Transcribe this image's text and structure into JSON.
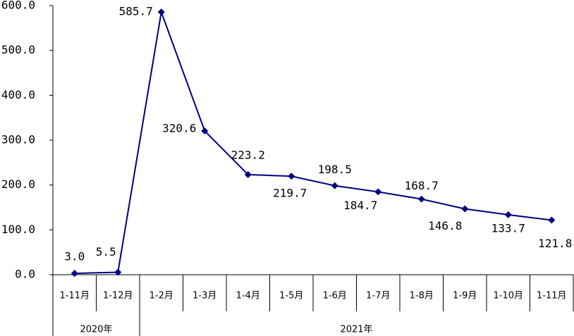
{
  "chart_data": {
    "type": "line",
    "categories": [
      "1-11月",
      "1-12月",
      "1-2月",
      "1-3月",
      "1-4月",
      "1-5月",
      "1-6月",
      "1-7月",
      "1-8月",
      "1-9月",
      "1-10月",
      "1-11月"
    ],
    "groups": [
      "2020年",
      "2021年"
    ],
    "series": [
      {
        "color": "#000080",
        "values": [
          3.0,
          5.5,
          585.7,
          320.6,
          223.2,
          219.7,
          198.5,
          184.7,
          168.7,
          146.8,
          133.7,
          121.8
        ],
        "value_labels": [
          "3.0",
          "5.5",
          "585.7",
          "320.6",
          "223.2",
          "219.7",
          "198.5",
          "184.7",
          "168.7",
          "146.8",
          "133.7",
          "121.8"
        ]
      }
    ],
    "ylim": [
      0,
      600
    ],
    "yticks": [
      {
        "value": 0,
        "label": "0.0"
      },
      {
        "value": 100,
        "label": "100.0"
      },
      {
        "value": 200,
        "label": "200.0"
      },
      {
        "value": 300,
        "label": "300.0"
      },
      {
        "value": 400,
        "label": "400.0"
      },
      {
        "value": 500,
        "label": "500.0"
      },
      {
        "value": 600,
        "label": "600.0"
      }
    ]
  }
}
